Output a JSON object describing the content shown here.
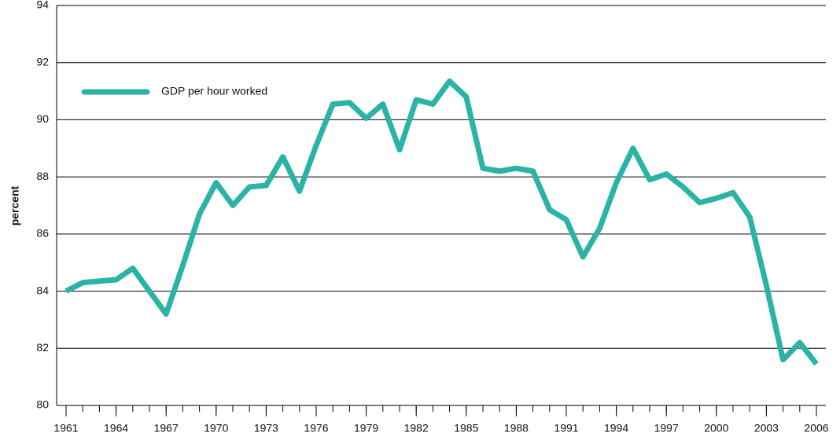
{
  "chart_data": {
    "type": "line",
    "x": [
      1961,
      1962,
      1963,
      1964,
      1965,
      1966,
      1967,
      1968,
      1969,
      1970,
      1971,
      1972,
      1973,
      1974,
      1975,
      1976,
      1977,
      1978,
      1979,
      1980,
      1981,
      1982,
      1983,
      1984,
      1985,
      1986,
      1987,
      1988,
      1989,
      1990,
      1991,
      1992,
      1993,
      1994,
      1995,
      1996,
      1997,
      1998,
      1999,
      2000,
      2001,
      2002,
      2003,
      2004,
      2005,
      2006
    ],
    "series": [
      {
        "name": "GDP per hour worked",
        "color": "#2ab3a6",
        "values": [
          84.0,
          84.3,
          84.35,
          84.4,
          84.8,
          84.0,
          83.2,
          84.9,
          86.7,
          87.8,
          87.0,
          87.65,
          87.7,
          88.7,
          87.5,
          89.1,
          90.55,
          90.6,
          90.05,
          90.55,
          88.95,
          90.7,
          90.55,
          91.35,
          90.8,
          88.3,
          88.2,
          88.3,
          88.2,
          86.85,
          86.5,
          85.2,
          86.2,
          87.8,
          89.0,
          87.9,
          88.1,
          87.65,
          87.1,
          87.25,
          87.45,
          86.6,
          84.2,
          81.6,
          82.2,
          81.45
        ]
      }
    ],
    "ylabel": "percent",
    "xlim": [
      1961,
      2006
    ],
    "xticks": [
      1961,
      1964,
      1967,
      1970,
      1973,
      1976,
      1979,
      1982,
      1985,
      1988,
      1991,
      1994,
      1997,
      2000,
      2003,
      2006
    ],
    "ylim": [
      80,
      94
    ],
    "yticks": [
      80,
      82,
      84,
      86,
      88,
      90,
      92,
      94
    ],
    "grid": true,
    "legend": "upper left"
  }
}
